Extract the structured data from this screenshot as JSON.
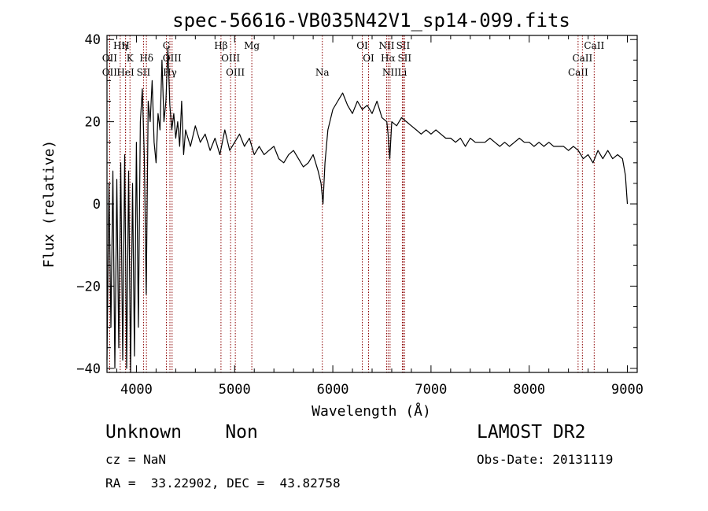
{
  "chart_data": {
    "type": "line",
    "title": "spec-56616-VB035N42V1_sp14-099.fits",
    "xlabel": "Wavelength (Å)",
    "ylabel": "Flux (relative)",
    "xlim": [
      3700,
      9100
    ],
    "ylim": [
      -41,
      41
    ],
    "xticks": [
      4000,
      5000,
      6000,
      7000,
      8000,
      9000
    ],
    "xtick_labels": [
      "4000",
      "5000",
      "6000",
      "7000",
      "8000",
      "9000"
    ],
    "yticks": [
      -40,
      -20,
      0,
      20,
      40
    ],
    "ytick_labels": [
      "−40",
      "−20",
      "0",
      "20",
      "40"
    ],
    "grid": false,
    "line_color": "#000000",
    "marker_color": "#8b0000",
    "spectrum": {
      "x": [
        3700,
        3720,
        3740,
        3760,
        3780,
        3800,
        3820,
        3840,
        3860,
        3880,
        3900,
        3920,
        3940,
        3960,
        3980,
        4000,
        4020,
        4040,
        4060,
        4080,
        4100,
        4120,
        4140,
        4160,
        4180,
        4200,
        4220,
        4240,
        4260,
        4280,
        4300,
        4320,
        4340,
        4360,
        4380,
        4400,
        4420,
        4440,
        4460,
        4480,
        4500,
        4550,
        4600,
        4650,
        4700,
        4750,
        4800,
        4850,
        4900,
        4950,
        5000,
        5050,
        5100,
        5150,
        5200,
        5250,
        5300,
        5350,
        5400,
        5450,
        5500,
        5550,
        5600,
        5650,
        5700,
        5750,
        5800,
        5850,
        5880,
        5900,
        5920,
        5950,
        6000,
        6050,
        6100,
        6150,
        6200,
        6250,
        6300,
        6350,
        6400,
        6450,
        6500,
        6550,
        6563,
        6580,
        6600,
        6650,
        6700,
        6750,
        6800,
        6850,
        6900,
        6950,
        7000,
        7050,
        7100,
        7150,
        7200,
        7250,
        7300,
        7350,
        7400,
        7450,
        7500,
        7550,
        7600,
        7650,
        7700,
        7750,
        7800,
        7850,
        7900,
        7950,
        8000,
        8050,
        8100,
        8150,
        8200,
        8250,
        8300,
        8350,
        8400,
        8450,
        8500,
        8550,
        8600,
        8650,
        8700,
        8750,
        8800,
        8850,
        8900,
        8950,
        8980,
        9000
      ],
      "y": [
        -38,
        5,
        -30,
        8,
        -40,
        6,
        -35,
        10,
        -38,
        12,
        -40,
        8,
        -41,
        5,
        -37,
        15,
        -30,
        20,
        28,
        12,
        -22,
        25,
        20,
        30,
        15,
        10,
        22,
        18,
        35,
        20,
        25,
        38,
        24,
        18,
        22,
        16,
        20,
        14,
        25,
        12,
        18,
        14,
        19,
        15,
        17,
        13,
        16,
        12,
        18,
        13,
        15,
        17,
        14,
        16,
        12,
        14,
        12,
        13,
        14,
        11,
        10,
        12,
        13,
        11,
        9,
        10,
        12,
        8,
        5,
        0,
        10,
        18,
        23,
        25,
        27,
        24,
        22,
        25,
        23,
        24,
        22,
        25,
        21,
        20,
        17,
        11,
        20,
        19,
        21,
        20,
        19,
        18,
        17,
        18,
        17,
        18,
        17,
        16,
        16,
        15,
        16,
        14,
        16,
        15,
        15,
        15,
        16,
        15,
        14,
        15,
        14,
        15,
        16,
        15,
        15,
        14,
        15,
        14,
        15,
        14,
        14,
        14,
        13,
        14,
        13,
        11,
        12,
        10,
        13,
        11,
        13,
        11,
        12,
        11,
        7,
        0
      ]
    },
    "lines": [
      {
        "label": "OII",
        "wave": 3727,
        "row": 3
      },
      {
        "label": "OII",
        "wave": 3727,
        "row": 2
      },
      {
        "label": "Hη",
        "wave": 3835,
        "row": 1
      },
      {
        "label": "H",
        "wave": 3889,
        "row": 1
      },
      {
        "label": "HeI",
        "wave": 3889,
        "row": 3
      },
      {
        "label": "K",
        "wave": 3934,
        "row": 2
      },
      {
        "label": "SII",
        "wave": 4072,
        "row": 3
      },
      {
        "label": "Hδ",
        "wave": 4102,
        "row": 2
      },
      {
        "label": "G",
        "wave": 4305,
        "row": 1
      },
      {
        "label": "OIII",
        "wave": 4363,
        "row": 2
      },
      {
        "label": "Hγ",
        "wave": 4341,
        "row": 3
      },
      {
        "label": "Hβ",
        "wave": 4861,
        "row": 1
      },
      {
        "label": "OIII",
        "wave": 4959,
        "row": 2
      },
      {
        "label": "OIII",
        "wave": 5007,
        "row": 3
      },
      {
        "label": "Mg",
        "wave": 5175,
        "row": 1
      },
      {
        "label": "Na",
        "wave": 5893,
        "row": 3
      },
      {
        "label": "OI",
        "wave": 6300,
        "row": 1
      },
      {
        "label": "OI",
        "wave": 6364,
        "row": 2
      },
      {
        "label": "NII",
        "wave": 6548,
        "row": 1
      },
      {
        "label": "Hα",
        "wave": 6563,
        "row": 2
      },
      {
        "label": "NII",
        "wave": 6583,
        "row": 3
      },
      {
        "label": "SII",
        "wave": 6716,
        "row": 1
      },
      {
        "label": "SII",
        "wave": 6731,
        "row": 2
      },
      {
        "label": "Li",
        "wave": 6708,
        "row": 3
      },
      {
        "label": "CaII",
        "wave": 8498,
        "row": 3
      },
      {
        "label": "CaII",
        "wave": 8542,
        "row": 2
      },
      {
        "label": "CaII",
        "wave": 8662,
        "row": 1
      }
    ]
  },
  "captions": {
    "object": "Unknown    Non",
    "survey": "LAMOST DR2",
    "redshift": "cz = NaN",
    "obs_date": "Obs-Date: 20131119",
    "coordinates": "RA =  33.22902, DEC =  43.82758"
  }
}
